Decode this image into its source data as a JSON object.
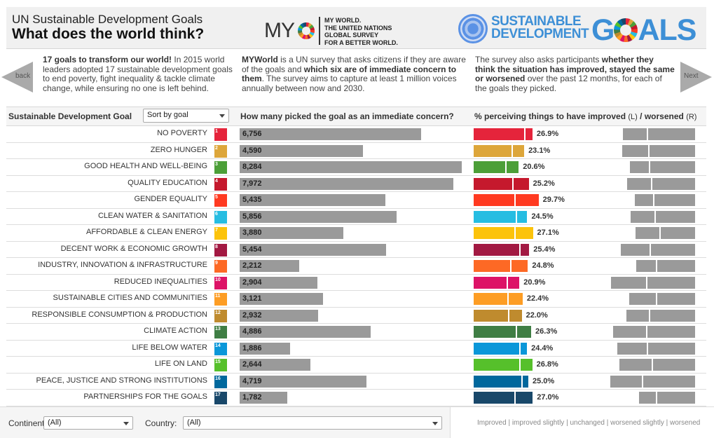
{
  "header": {
    "title_line1": "UN Sustainable Development Goals",
    "title_line2": "What does the world think?",
    "myo_logo_text": "MY",
    "myo_tagline": [
      "MY WORLD.",
      "THE UNITED NATIONS",
      "GLOBAL SURVEY",
      "FOR A BETTER WORLD."
    ],
    "sdg_logo_line1": "SUSTAINABLE",
    "sdg_logo_line2": "DEVELOPMENT",
    "sdg_logo_goals_g": "G",
    "sdg_logo_goals_rest": "ALS"
  },
  "nav": {
    "back_label": "back",
    "next_label": "Next"
  },
  "intro": {
    "p1_bold": "17 goals to transform our world!",
    "p1_rest": " In 2015 world leaders adopted 17 sustainable development goals to end poverty, fight inequality & tackle climate change, while ensuring no one is left behind.",
    "p2_bold1": "MYWorld",
    "p2_mid1": " is a UN survey that asks citizens if they are aware of the goals and ",
    "p2_bold2": "which six are of immediate concern to them",
    "p2_rest": ". The survey aims to capture at least 1 million voices annually between now and 2030.",
    "p3_start": "The survey also asks participants ",
    "p3_bold": "whether they think the situation has improved, stayed the same or worsened",
    "p3_rest": " over the past 12 months, for each of the goals they picked."
  },
  "columns": {
    "goal_header": "Sustainable Development Goal",
    "sort_select_value": "Sort by goal",
    "count_header": "How many picked the goal as an immediate concern?",
    "perc_header_main": "% perceiving things to have improved ",
    "perc_header_l": "(L)",
    "perc_header_sep": " / worsened ",
    "perc_header_r": "(R)"
  },
  "chart_data": {
    "type": "bar",
    "title": "What does the world think?",
    "categories": [
      "NO POVERTY",
      "ZERO HUNGER",
      "GOOD HEALTH AND WELL-BEING",
      "QUALITY EDUCATION",
      "GENDER EQUALITY",
      "CLEAN WATER & SANITATION",
      "AFFORDABLE & CLEAN ENERGY",
      "DECENT WORK & ECONOMIC GROWTH",
      "INDUSTRY, INNOVATION & INFRASTRUCTURE",
      "REDUCED INEQUALITIES",
      "SUSTAINABLE CITIES AND COMMUNITIES",
      "RESPONSIBLE CONSUMPTION & PRODUCTION",
      "CLIMATE ACTION",
      "LIFE BELOW WATER",
      "LIFE ON LAND",
      "PEACE, JUSTICE AND STRONG INSTITUTIONS",
      "PARTNERSHIPS FOR THE GOALS"
    ],
    "goal_numbers": [
      1,
      2,
      3,
      4,
      5,
      6,
      7,
      8,
      9,
      10,
      11,
      12,
      13,
      14,
      15,
      16,
      17
    ],
    "goal_colors": [
      "#e5243b",
      "#dda63a",
      "#4c9f38",
      "#c5192d",
      "#ff3a21",
      "#26bde2",
      "#fcc30b",
      "#a21942",
      "#fd6925",
      "#dd1367",
      "#fd9d24",
      "#bf8b2e",
      "#3f7e44",
      "#0a97d9",
      "#56c02b",
      "#00689d",
      "#19486a"
    ],
    "series": [
      {
        "name": "Picked as immediate concern",
        "values": [
          6756,
          4590,
          8284,
          7972,
          5435,
          5856,
          3880,
          5454,
          2212,
          2904,
          3121,
          2932,
          4886,
          1886,
          2644,
          4719,
          1782
        ],
        "labels": [
          "6,756",
          "4,590",
          "8,284",
          "7,972",
          "5,435",
          "5,856",
          "3,880",
          "5,454",
          "2,212",
          "2,904",
          "3,121",
          "2,932",
          "4,886",
          "1,886",
          "2,644",
          "4,719",
          "1,782"
        ]
      },
      {
        "name": "Improved (%)",
        "values": [
          23.4,
          17.6,
          14.9,
          17.9,
          18.9,
          19.6,
          18.9,
          21.1,
          17.0,
          15.4,
          15.7,
          16.0,
          19.6,
          21.1,
          21.1,
          22.1,
          18.9
        ]
      },
      {
        "name": "Improved slightly (%)",
        "values": [
          3.5,
          5.5,
          5.7,
          7.3,
          10.8,
          4.9,
          8.2,
          4.3,
          7.8,
          5.5,
          6.7,
          6.0,
          6.7,
          3.3,
          5.7,
          2.9,
          8.1
        ]
      },
      {
        "name": "Total improved (%)",
        "values": [
          26.9,
          23.1,
          20.6,
          25.2,
          29.7,
          24.5,
          27.1,
          25.4,
          24.8,
          20.9,
          22.4,
          22.0,
          26.3,
          24.4,
          26.8,
          25.0,
          27.0
        ],
        "labels": [
          "26.9%",
          "23.1%",
          "20.6%",
          "25.2%",
          "29.7%",
          "24.5%",
          "27.1%",
          "25.4%",
          "24.8%",
          "20.9%",
          "22.4%",
          "22.0%",
          "26.3%",
          "24.4%",
          "26.8%",
          "25.0%",
          "27.0%"
        ]
      },
      {
        "name": "Worsened slightly (%)",
        "values": [
          11.5,
          12.5,
          9.3,
          11.5,
          9.0,
          11.5,
          11.5,
          13.8,
          9.6,
          16.7,
          12.8,
          10.9,
          15.7,
          14.1,
          15.4,
          15.1,
          8.3
        ]
      },
      {
        "name": "Worsened (%)",
        "values": [
          21.4,
          20.8,
          20.5,
          19.6,
          18.6,
          17.9,
          15.7,
          20.2,
          17.3,
          21.8,
          17.3,
          20.5,
          21.8,
          21.5,
          19.2,
          23.7,
          17.3
        ]
      }
    ],
    "count_max": 8284,
    "legend": "Improved | improved slightly | unchanged | worsened slightly | worsened",
    "legend_placement": "bottom-right"
  },
  "filters": {
    "continent_label": "Continent:",
    "continent_value": "(All)",
    "country_label": "Country:",
    "country_value": "(All)"
  },
  "colors": {
    "bar_gray": "#9a9a9a",
    "header_bg": "#f0f0f0",
    "logo_blue": "#3d8fd6"
  }
}
